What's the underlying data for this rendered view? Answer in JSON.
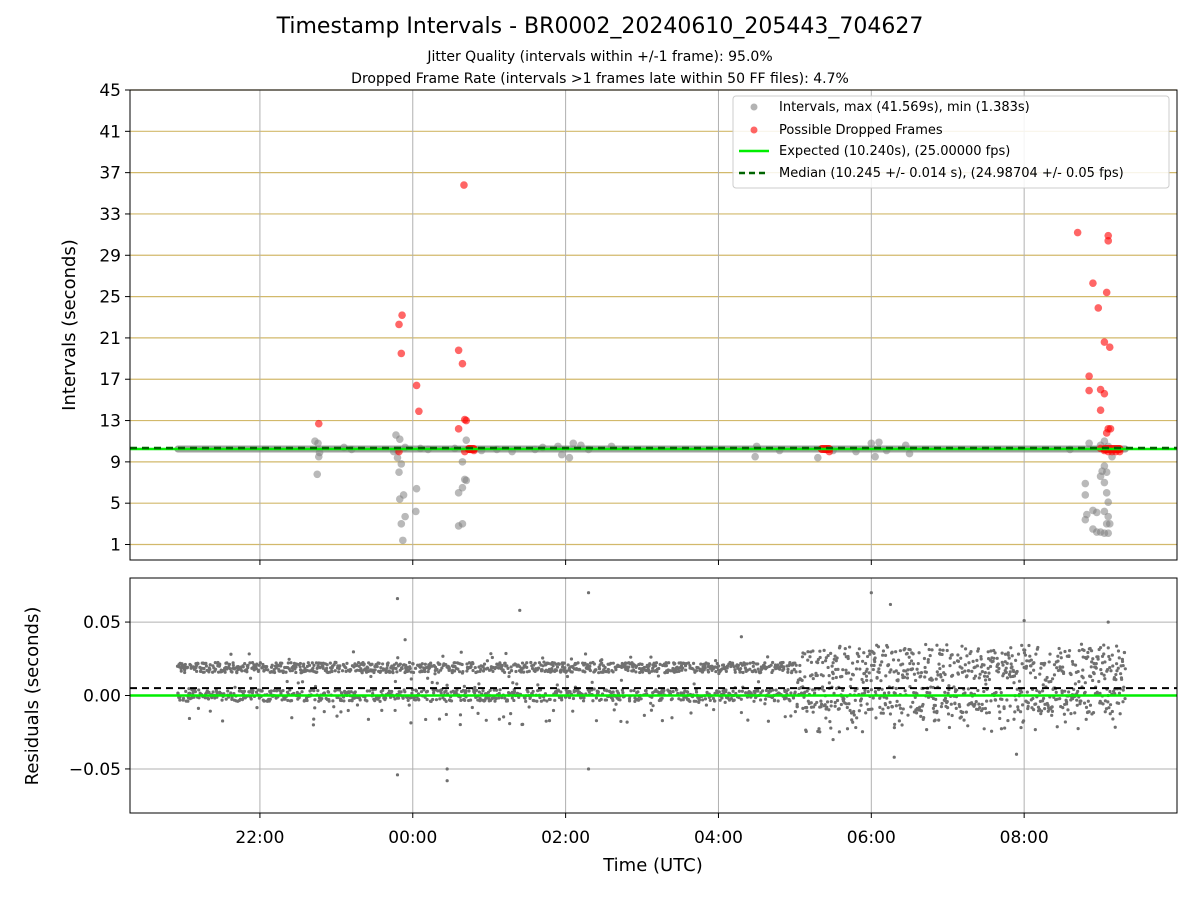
{
  "title": "Timestamp Intervals - BR0002_20240610_205443_704627",
  "subtitle_1": "Jitter Quality (intervals within +/-1 frame): 95.0%",
  "subtitle_2": "Dropped Frame Rate (intervals >1 frames late within 50 FF files): 4.7%",
  "colors": {
    "intervals": "#808080",
    "dropped": "#ff0000",
    "expected": "#00ee00",
    "median": "#006400",
    "hgrid_top": "#d2b96b",
    "grid": "#b0b0b0",
    "residual_points": "#707070"
  },
  "chart_data": [
    {
      "type": "scatter",
      "ylabel": "Intervals (seconds)",
      "ylim": [
        -0.5,
        45
      ],
      "y_ticks": [
        "1",
        "5",
        "9",
        "13",
        "17",
        "21",
        "25",
        "29",
        "33",
        "37",
        "41",
        "45"
      ],
      "x_range_hours": [
        -3.7,
        10.0
      ],
      "x_ticks": [
        "22:00",
        "00:00",
        "02:00",
        "04:00",
        "06:00",
        "08:00"
      ],
      "legend": {
        "placement": "upper right",
        "entries": [
          "Intervals, max (41.569s), min (1.383s)",
          "Possible Dropped Frames",
          "Expected (10.240s), (25.00000 fps)",
          "Median (10.245 +/- 0.014 s), (24.98704 +/- 0.05 fps)"
        ]
      },
      "expected_value": 10.24,
      "median_value": 10.245,
      "baseline_x_range": [
        "20:55",
        "09:20"
      ],
      "gray_points": [
        [
          -1.28,
          11.0
        ],
        [
          -1.24,
          10.8
        ],
        [
          -1.22,
          9.9
        ],
        [
          -1.25,
          7.8
        ],
        [
          -1.23,
          9.5
        ],
        [
          -0.9,
          10.4
        ],
        [
          -0.8,
          10.2
        ],
        [
          -0.2,
          10.1
        ],
        [
          -0.1,
          10.4
        ],
        [
          -0.25,
          10.0
        ],
        [
          -0.22,
          11.6
        ],
        [
          -0.17,
          11.2
        ],
        [
          -0.2,
          9.4
        ],
        [
          -0.15,
          8.8
        ],
        [
          -0.18,
          8.0
        ],
        [
          -0.17,
          5.4
        ],
        [
          -0.12,
          5.8
        ],
        [
          -0.1,
          3.7
        ],
        [
          -0.15,
          3.0
        ],
        [
          -0.13,
          1.4
        ],
        [
          0.05,
          6.4
        ],
        [
          0.04,
          4.2
        ],
        [
          0.1,
          10.3
        ],
        [
          0.2,
          10.2
        ],
        [
          0.6,
          6.0
        ],
        [
          0.65,
          6.5
        ],
        [
          0.68,
          7.3
        ],
        [
          0.7,
          7.2
        ],
        [
          0.65,
          9.0
        ],
        [
          0.6,
          2.8
        ],
        [
          0.65,
          3.0
        ],
        [
          0.7,
          11.1
        ],
        [
          0.55,
          10.3
        ],
        [
          0.9,
          10.1
        ],
        [
          1.1,
          10.2
        ],
        [
          1.3,
          10.0
        ],
        [
          1.6,
          10.2
        ],
        [
          1.7,
          10.4
        ],
        [
          1.9,
          10.5
        ],
        [
          1.95,
          9.7
        ],
        [
          2.1,
          10.8
        ],
        [
          2.2,
          10.6
        ],
        [
          2.05,
          9.4
        ],
        [
          2.3,
          10.2
        ],
        [
          2.6,
          10.5
        ],
        [
          4.5,
          10.5
        ],
        [
          4.48,
          9.5
        ],
        [
          4.8,
          10.1
        ],
        [
          5.3,
          9.4
        ],
        [
          5.5,
          10.1
        ],
        [
          5.8,
          10.0
        ],
        [
          6.0,
          10.8
        ],
        [
          6.1,
          10.9
        ],
        [
          6.05,
          9.5
        ],
        [
          6.2,
          10.1
        ],
        [
          6.45,
          10.6
        ],
        [
          6.5,
          9.8
        ],
        [
          8.6,
          10.2
        ],
        [
          8.8,
          6.9
        ],
        [
          8.8,
          5.8
        ],
        [
          8.82,
          3.9
        ],
        [
          8.8,
          3.4
        ],
        [
          8.9,
          4.3
        ],
        [
          8.95,
          4.1
        ],
        [
          8.9,
          2.5
        ],
        [
          8.95,
          2.2
        ],
        [
          9.0,
          2.2
        ],
        [
          9.05,
          2.1
        ],
        [
          9.1,
          2.1
        ],
        [
          9.0,
          7.6
        ],
        [
          9.02,
          8.1
        ],
        [
          9.05,
          8.6
        ],
        [
          9.08,
          8.0
        ],
        [
          9.05,
          7.0
        ],
        [
          9.08,
          6.0
        ],
        [
          9.1,
          5.1
        ],
        [
          9.05,
          4.2
        ],
        [
          9.1,
          3.7
        ],
        [
          9.12,
          3.0
        ],
        [
          9.08,
          3.0
        ],
        [
          9.0,
          10.6
        ],
        [
          9.05,
          11.0
        ],
        [
          9.1,
          10.5
        ],
        [
          9.15,
          9.5
        ],
        [
          8.85,
          10.8
        ]
      ],
      "red_points": [
        [
          -1.23,
          12.7
        ],
        [
          -0.18,
          22.3
        ],
        [
          -0.14,
          23.2
        ],
        [
          -0.15,
          19.5
        ],
        [
          -0.18,
          10.0
        ],
        [
          0.05,
          16.4
        ],
        [
          0.08,
          13.9
        ],
        [
          0.6,
          12.2
        ],
        [
          0.6,
          19.8
        ],
        [
          0.65,
          18.5
        ],
        [
          0.67,
          35.8
        ],
        [
          0.7,
          13.0
        ],
        [
          0.68,
          13.1
        ],
        [
          0.68,
          10.0
        ],
        [
          0.75,
          10.2
        ],
        [
          0.8,
          10.1
        ],
        [
          5.4,
          10.2
        ],
        [
          5.45,
          10.0
        ],
        [
          8.7,
          31.2
        ],
        [
          8.85,
          17.3
        ],
        [
          8.85,
          15.9
        ],
        [
          8.9,
          26.3
        ],
        [
          8.97,
          23.9
        ],
        [
          9.0,
          14.0
        ],
        [
          9.0,
          16.0
        ],
        [
          9.05,
          20.6
        ],
        [
          9.05,
          15.6
        ],
        [
          9.08,
          25.4
        ],
        [
          9.1,
          30.9
        ],
        [
          9.1,
          30.4
        ],
        [
          9.12,
          20.1
        ],
        [
          9.08,
          11.8
        ],
        [
          9.1,
          12.2
        ],
        [
          9.13,
          12.2
        ],
        [
          9.0,
          10.3
        ],
        [
          9.05,
          10.1
        ],
        [
          9.1,
          10.0
        ],
        [
          9.15,
          10.0
        ],
        [
          9.2,
          10.0
        ],
        [
          9.25,
          10.0
        ]
      ],
      "red_dense_segments": [
        [
          0.68,
          0.85
        ],
        [
          5.3,
          5.5
        ],
        [
          9.0,
          9.3
        ]
      ]
    },
    {
      "type": "scatter",
      "ylabel": "Residuals (seconds)",
      "xlabel": "Time (UTC)",
      "ylim": [
        -0.08,
        0.08
      ],
      "y_ticks": [
        "0.05",
        "0.00",
        "−0.05"
      ],
      "y_tick_values": [
        0.05,
        0.0,
        -0.05
      ],
      "x_range_hours": [
        -3.7,
        10.0
      ],
      "x_ticks": [
        "22:00",
        "00:00",
        "02:00",
        "04:00",
        "06:00",
        "08:00"
      ],
      "expected_residual": 0.0,
      "median_residual": 0.005,
      "residual_bands": {
        "upper_early": 0.019,
        "upper_late_range": [
          0.005,
          0.03
        ],
        "lower": 0.0
      },
      "outliers": [
        [
          -0.2,
          0.066
        ],
        [
          -0.2,
          -0.054
        ],
        [
          1.4,
          0.058
        ],
        [
          2.3,
          0.07
        ],
        [
          2.3,
          -0.05
        ],
        [
          0.45,
          -0.05
        ],
        [
          0.45,
          -0.058
        ],
        [
          6.0,
          0.07
        ],
        [
          6.25,
          0.062
        ],
        [
          4.3,
          0.04
        ],
        [
          -0.1,
          0.038
        ],
        [
          8.0,
          0.051
        ],
        [
          6.3,
          -0.042
        ],
        [
          7.9,
          -0.04
        ],
        [
          5.5,
          -0.03
        ],
        [
          9.1,
          0.05
        ],
        [
          -1.3,
          -0.02
        ]
      ]
    }
  ]
}
